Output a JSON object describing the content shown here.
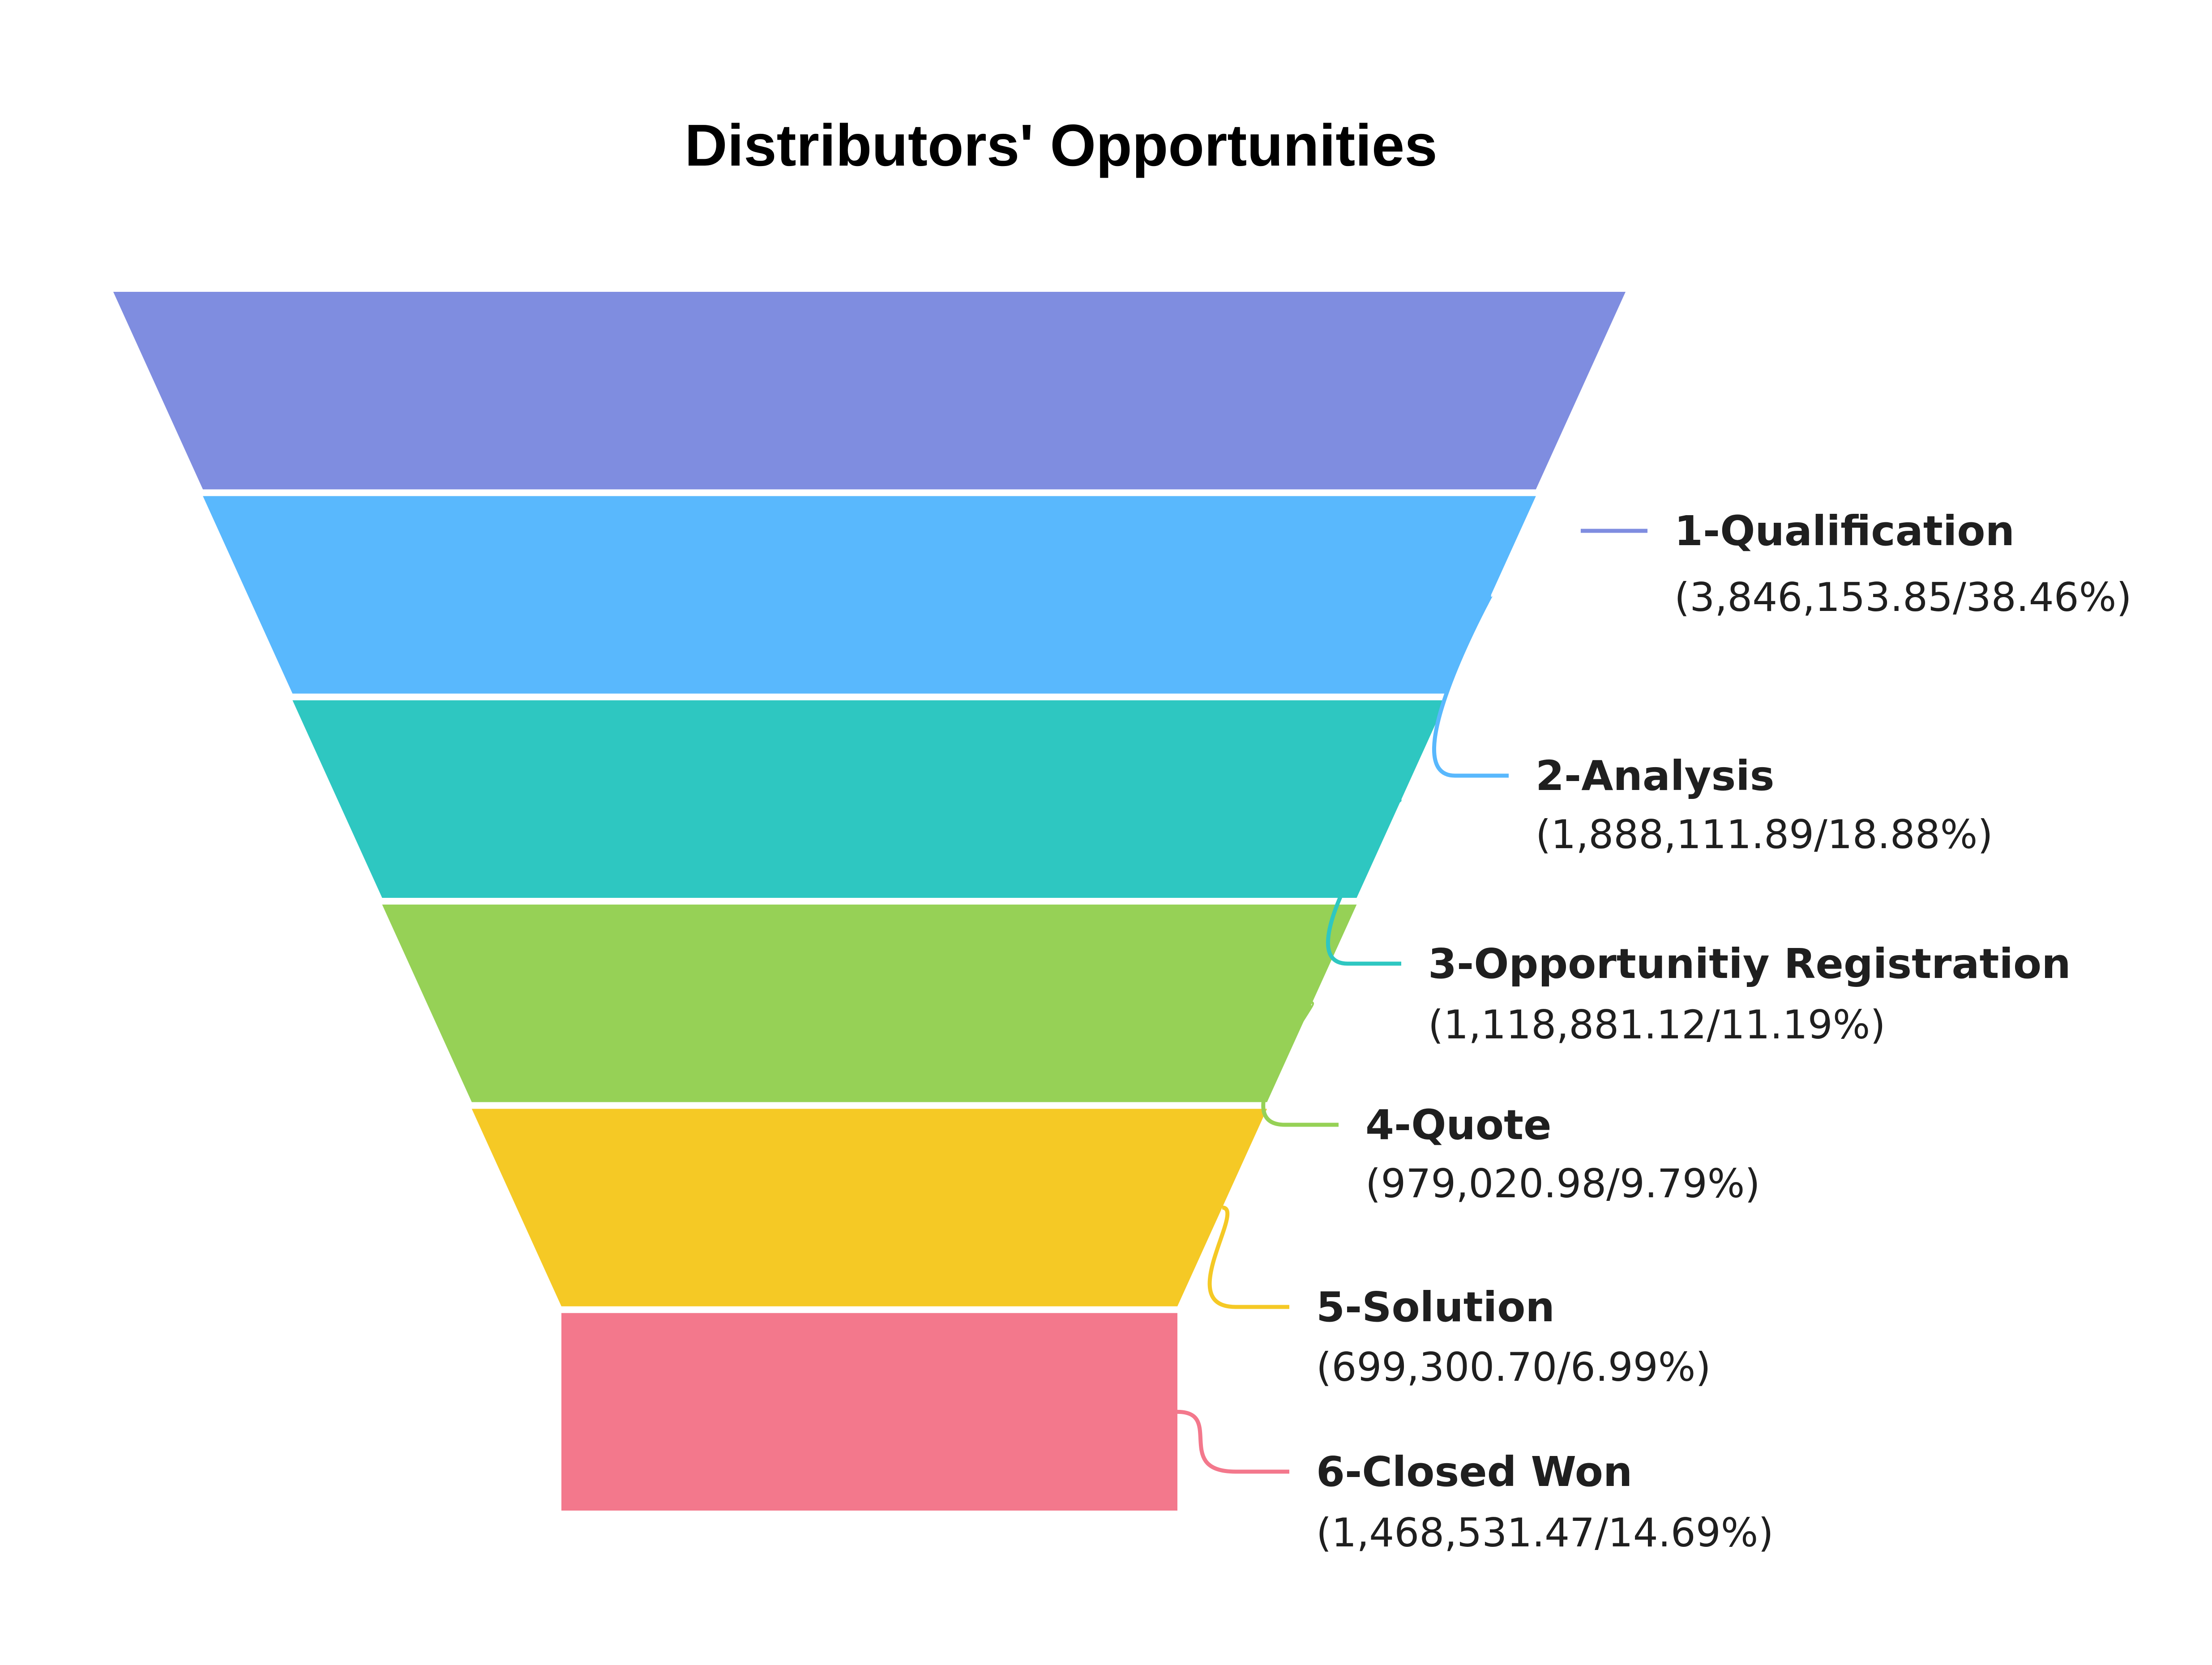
{
  "chart_data": {
    "type": "funnel",
    "title": "Distributors' Opportunities",
    "stages": [
      {
        "name": "1-Qualification",
        "value": 3846153.85,
        "percent": 38.46,
        "value_label": "(3,846,153.85/38.46%)",
        "color": "#7f8de0"
      },
      {
        "name": "2-Analysis",
        "value": 1888111.89,
        "percent": 18.88,
        "value_label": "(1,888,111.89/18.88%)",
        "color": "#59b8fd"
      },
      {
        "name": "3-Opportunitiy Registration",
        "value": 1118881.12,
        "percent": 11.19,
        "value_label": "(1,118,881.12/11.19%)",
        "color": "#2ec7c1"
      },
      {
        "name": "4-Quote",
        "value": 979020.98,
        "percent": 9.79,
        "value_label": "(979,020.98/9.79%)",
        "color": "#96d156"
      },
      {
        "name": "5-Solution",
        "value": 699300.7,
        "percent": 6.99,
        "value_label": "(699,300.70/6.99%)",
        "color": "#f5c925"
      },
      {
        "name": "6-Closed Won",
        "value": 1468531.47,
        "percent": 14.69,
        "value_label": "(1,468,531.47/14.69%)",
        "color": "#f3788c"
      }
    ]
  }
}
